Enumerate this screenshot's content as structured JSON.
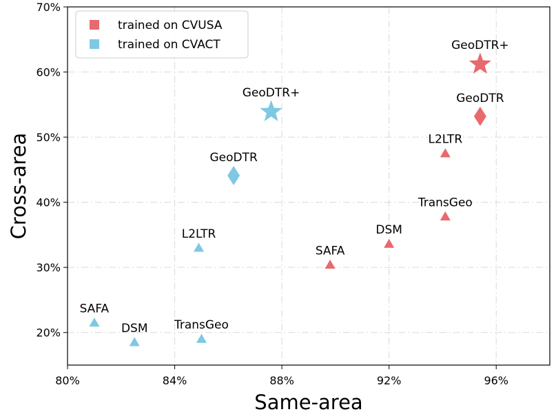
{
  "chart_data": {
    "type": "scatter",
    "xlabel": "Same-area",
    "ylabel": "Cross-area",
    "xlim": [
      80,
      98
    ],
    "ylim": [
      15,
      70
    ],
    "x_unit": "%",
    "y_unit": "%",
    "x_ticks": [
      "80%",
      "84%",
      "88%",
      "92%",
      "96%"
    ],
    "y_ticks": [
      "20%",
      "30%",
      "40%",
      "50%",
      "60%",
      "70%"
    ],
    "grid": true,
    "legend_position": "top-left",
    "series": [
      {
        "name": "trained on CVUSA",
        "color": "#e8696e",
        "points": [
          {
            "label": "SAFA",
            "x": 89.8,
            "y": 30.4,
            "marker": "triangle"
          },
          {
            "label": "DSM",
            "x": 92.0,
            "y": 33.6,
            "marker": "triangle"
          },
          {
            "label": "TransGeo",
            "x": 94.1,
            "y": 37.8,
            "marker": "triangle"
          },
          {
            "label": "L2LTR",
            "x": 94.1,
            "y": 47.5,
            "marker": "triangle"
          },
          {
            "label": "GeoDTR",
            "x": 95.4,
            "y": 53.2,
            "marker": "diamond"
          },
          {
            "label": "GeoDTR+",
            "x": 95.4,
            "y": 61.2,
            "marker": "star"
          }
        ]
      },
      {
        "name": "trained on CVACT",
        "color": "#7ec8e3",
        "points": [
          {
            "label": "SAFA",
            "x": 81.0,
            "y": 21.5,
            "marker": "triangle"
          },
          {
            "label": "DSM",
            "x": 82.5,
            "y": 18.5,
            "marker": "triangle"
          },
          {
            "label": "TransGeo",
            "x": 85.0,
            "y": 19.0,
            "marker": "triangle"
          },
          {
            "label": "L2LTR",
            "x": 84.9,
            "y": 33.0,
            "marker": "triangle"
          },
          {
            "label": "GeoDTR",
            "x": 86.2,
            "y": 44.1,
            "marker": "diamond"
          },
          {
            "label": "GeoDTR+",
            "x": 87.6,
            "y": 53.9,
            "marker": "star"
          }
        ]
      }
    ]
  }
}
